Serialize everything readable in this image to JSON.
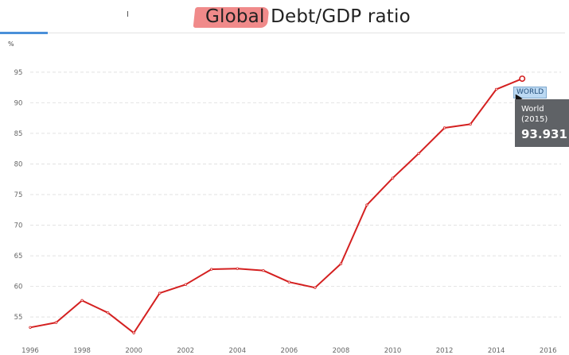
{
  "header": {
    "title_highlight": "Global",
    "title_rest": " Debt/GDP ratio"
  },
  "tooltip": {
    "tag": "WORLD",
    "series": "World",
    "year": "(2015)",
    "value": "93.931"
  },
  "chart_data": {
    "type": "line",
    "ylabel": "%",
    "ylim": [
      51,
      99
    ],
    "xlim": [
      1996,
      2016.5
    ],
    "x_ticks": [
      1996,
      1998,
      2000,
      2002,
      2004,
      2006,
      2008,
      2010,
      2012,
      2014,
      2016
    ],
    "y_ticks": [
      55,
      60,
      65,
      70,
      75,
      80,
      85,
      90,
      95
    ],
    "grid": true,
    "series": [
      {
        "name": "World",
        "color": "#d42020",
        "x": [
          1996,
          1997,
          1998,
          1999,
          2000,
          2001,
          2002,
          2003,
          2004,
          2005,
          2006,
          2007,
          2008,
          2009,
          2010,
          2011,
          2012,
          2013,
          2014,
          2015
        ],
        "y": [
          53.3,
          54.1,
          57.7,
          55.7,
          52.4,
          58.9,
          60.3,
          62.8,
          62.9,
          62.6,
          60.7,
          59.8,
          63.7,
          73.3,
          77.7,
          81.7,
          85.9,
          86.5,
          92.2,
          93.931
        ]
      }
    ]
  }
}
